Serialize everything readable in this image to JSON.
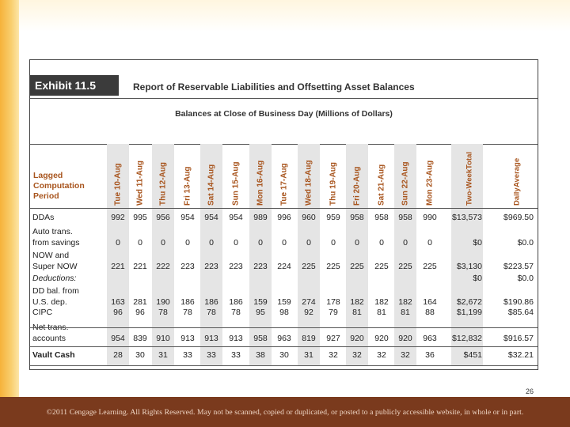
{
  "exhibit": {
    "label": "Exhibit 11.5",
    "title": "Report of Reservable Liabilities and Offsetting Asset Balances",
    "subtitle": "Balances at Close of Business Day (Millions of Dollars)",
    "row_header": [
      "Lagged",
      "Computation",
      "Period"
    ],
    "columns": [
      "Tue 10-Aug",
      "Wed 11-Aug",
      "Thu 12-Aug",
      "Fri 13-Aug",
      "Sat 14-Aug",
      "Sun 15-Aug",
      "Mon 16-Aug",
      "Tue 17-Aug",
      "Wed 18-Aug",
      "Thu 19-Aug",
      "Fri 20-Aug",
      "Sat 21-Aug",
      "Sun 22-Aug",
      "Mon 23-Aug"
    ],
    "total_header": [
      "Two-Week",
      "Total"
    ],
    "avg_header": [
      "Daily",
      "Average"
    ],
    "rows": [
      {
        "label": "DDAs",
        "values": [
          "992",
          "995",
          "956",
          "954",
          "954",
          "954",
          "989",
          "996",
          "960",
          "959",
          "958",
          "958",
          "958",
          "990"
        ],
        "total": "$13,573",
        "avg": "$969.50"
      },
      {
        "label": "Auto trans.",
        "values": []
      },
      {
        "label": "  from savings",
        "values": [
          "0",
          "0",
          "0",
          "0",
          "0",
          "0",
          "0",
          "0",
          "0",
          "0",
          "0",
          "0",
          "0",
          "0"
        ],
        "total": "$0",
        "avg": "$0.0"
      },
      {
        "label": "NOW and",
        "values": []
      },
      {
        "label": "  Super NOW",
        "values": [
          "221",
          "221",
          "222",
          "223",
          "223",
          "223",
          "223",
          "224",
          "225",
          "225",
          "225",
          "225",
          "225",
          "225"
        ],
        "total": "$3,130",
        "avg": "$223.57"
      },
      {
        "label": "Deductions:",
        "values": [],
        "total": "$0",
        "avg": "$0.0"
      },
      {
        "label": "  DD bal. from",
        "values": []
      },
      {
        "label": "  U.S. dep.",
        "values": [
          "163",
          "281",
          "190",
          "186",
          "186",
          "186",
          "159",
          "159",
          "274",
          "178",
          "182",
          "182",
          "182",
          "164"
        ],
        "total": "$2,672",
        "avg": "$190.86"
      },
      {
        "label": "  CIPC",
        "values": [
          "96",
          "96",
          "78",
          "78",
          "78",
          "78",
          "95",
          "98",
          "92",
          "79",
          "81",
          "81",
          "81",
          "88"
        ],
        "total": "$1,199",
        "avg": "$85.64"
      },
      {
        "label": "  Net trans.",
        "values": []
      },
      {
        "label": "   accounts",
        "values": [
          "954",
          "839",
          "910",
          "913",
          "913",
          "913",
          "958",
          "963",
          "819",
          "927",
          "920",
          "920",
          "920",
          "963"
        ],
        "total": "$12,832",
        "avg": "$916.57"
      },
      {
        "label": "Vault Cash",
        "values": [
          "28",
          "30",
          "31",
          "33",
          "33",
          "33",
          "38",
          "30",
          "31",
          "32",
          "32",
          "32",
          "32",
          "36"
        ],
        "total": "$451",
        "avg": "$32.21"
      }
    ]
  },
  "page_number": "26",
  "footer": "©2011 Cengage Learning. All Rights Reserved. May not be scanned, copied or duplicated, or posted to a publicly accessible website, in whole or in part."
}
